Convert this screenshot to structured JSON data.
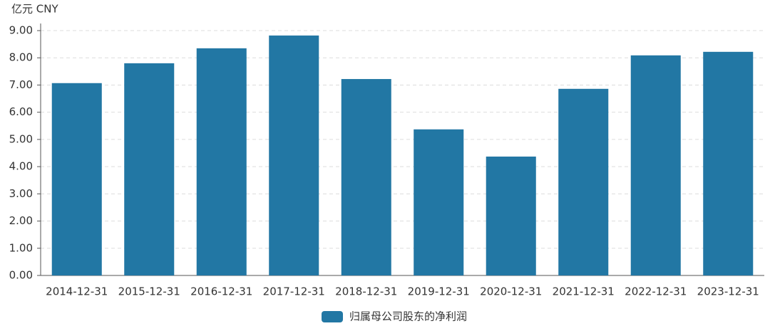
{
  "chart_data": {
    "type": "bar",
    "y_axis_label": "亿元 CNY",
    "categories": [
      "2014-12-31",
      "2015-12-31",
      "2016-12-31",
      "2017-12-31",
      "2018-12-31",
      "2019-12-31",
      "2020-12-31",
      "2021-12-31",
      "2022-12-31",
      "2023-12-31"
    ],
    "series": [
      {
        "name": "归属母公司股东的净利润",
        "color": "#2277a4",
        "values": [
          7.07,
          7.8,
          8.35,
          8.82,
          7.22,
          5.37,
          4.37,
          6.86,
          8.09,
          8.22
        ]
      }
    ],
    "ylim": [
      0,
      9
    ],
    "yticks": [
      {
        "value": 0,
        "label": "0.00"
      },
      {
        "value": 1,
        "label": "1.00"
      },
      {
        "value": 2,
        "label": "2.00"
      },
      {
        "value": 3,
        "label": "3.00"
      },
      {
        "value": 4,
        "label": "4.00"
      },
      {
        "value": 5,
        "label": "5.00"
      },
      {
        "value": 6,
        "label": "6.00"
      },
      {
        "value": 7,
        "label": "7.00"
      },
      {
        "value": 8,
        "label": "8.00"
      },
      {
        "value": 9,
        "label": "9.00"
      }
    ],
    "grid": true,
    "legend": "bottom"
  }
}
